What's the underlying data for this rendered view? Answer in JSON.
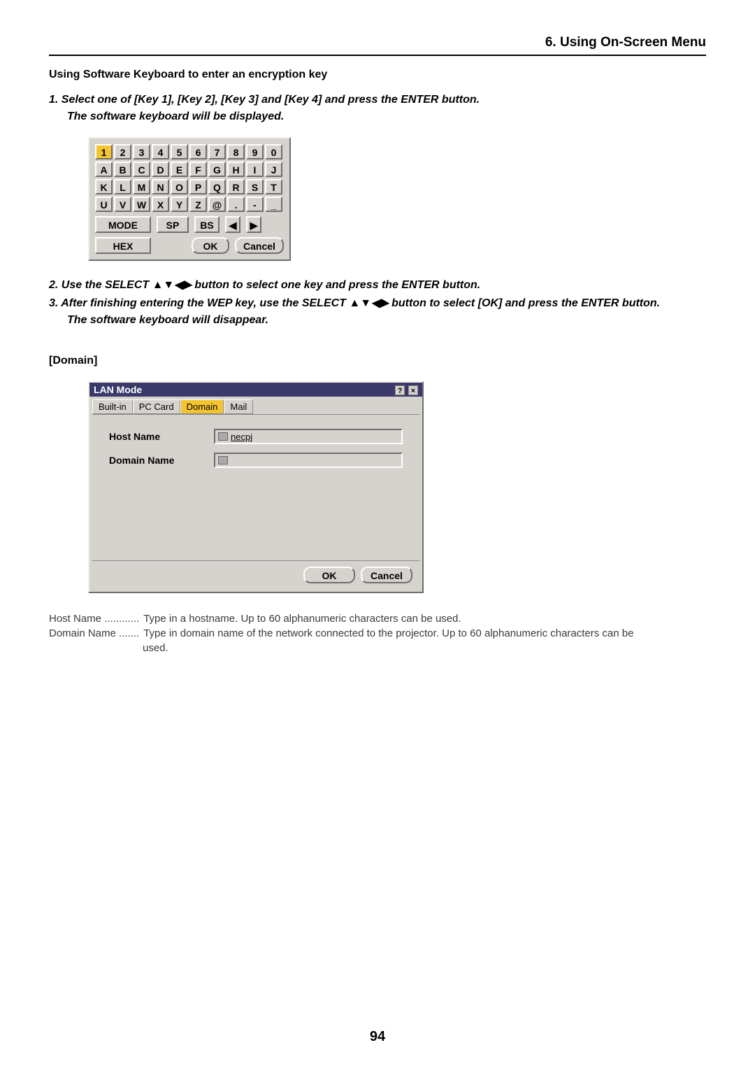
{
  "section_header": "6. Using On-Screen Menu",
  "subheading": "Using Software Keyboard to enter an encryption key",
  "step1_a": "1.  Select one of [Key 1], [Key 2], [Key 3] and [Key 4] and press the ENTER button.",
  "step1_b": "The software keyboard will be displayed.",
  "keyboard": {
    "row1": [
      "1",
      "2",
      "3",
      "4",
      "5",
      "6",
      "7",
      "8",
      "9",
      "0"
    ],
    "row2": [
      "A",
      "B",
      "C",
      "D",
      "E",
      "F",
      "G",
      "H",
      "I",
      "J"
    ],
    "row3": [
      "K",
      "L",
      "M",
      "N",
      "O",
      "P",
      "Q",
      "R",
      "S",
      "T"
    ],
    "row4": [
      "U",
      "V",
      "W",
      "X",
      "Y",
      "Z",
      "@",
      ".",
      "-",
      "_"
    ],
    "mode": "MODE",
    "sp": "SP",
    "bs": "BS",
    "left": "◀",
    "right": "▶",
    "hex": "HEX",
    "ok": "OK",
    "cancel": "Cancel"
  },
  "step2": "2.  Use the SELECT ▲▼◀▶  button to select one key and press the ENTER button.",
  "step3": "3.  After finishing entering the WEP key, use the SELECT ▲▼◀▶ button to select [OK] and press the ENTER button.",
  "step3_b": "The software keyboard will disappear.",
  "domain_head": "[Domain]",
  "lan": {
    "title": "LAN Mode",
    "help": "?",
    "close": "×",
    "tabs": [
      "Built-in",
      "PC Card",
      "Domain",
      "Mail"
    ],
    "active_tab": "Domain",
    "host_label": "Host Name",
    "domain_label": "Domain Name",
    "host_value": "necpj",
    "domain_value": "",
    "ok": "OK",
    "cancel": "Cancel"
  },
  "desc": {
    "host_label": "Host Name ............",
    "host_text": "Type in a hostname. Up to 60 alphanumeric characters can be used.",
    "domain_label": "Domain Name .......",
    "domain_text": "Type in domain name of the network connected to the projector. Up to 60 alphanumeric characters can be",
    "domain_cont": "used."
  },
  "page_num": "94"
}
